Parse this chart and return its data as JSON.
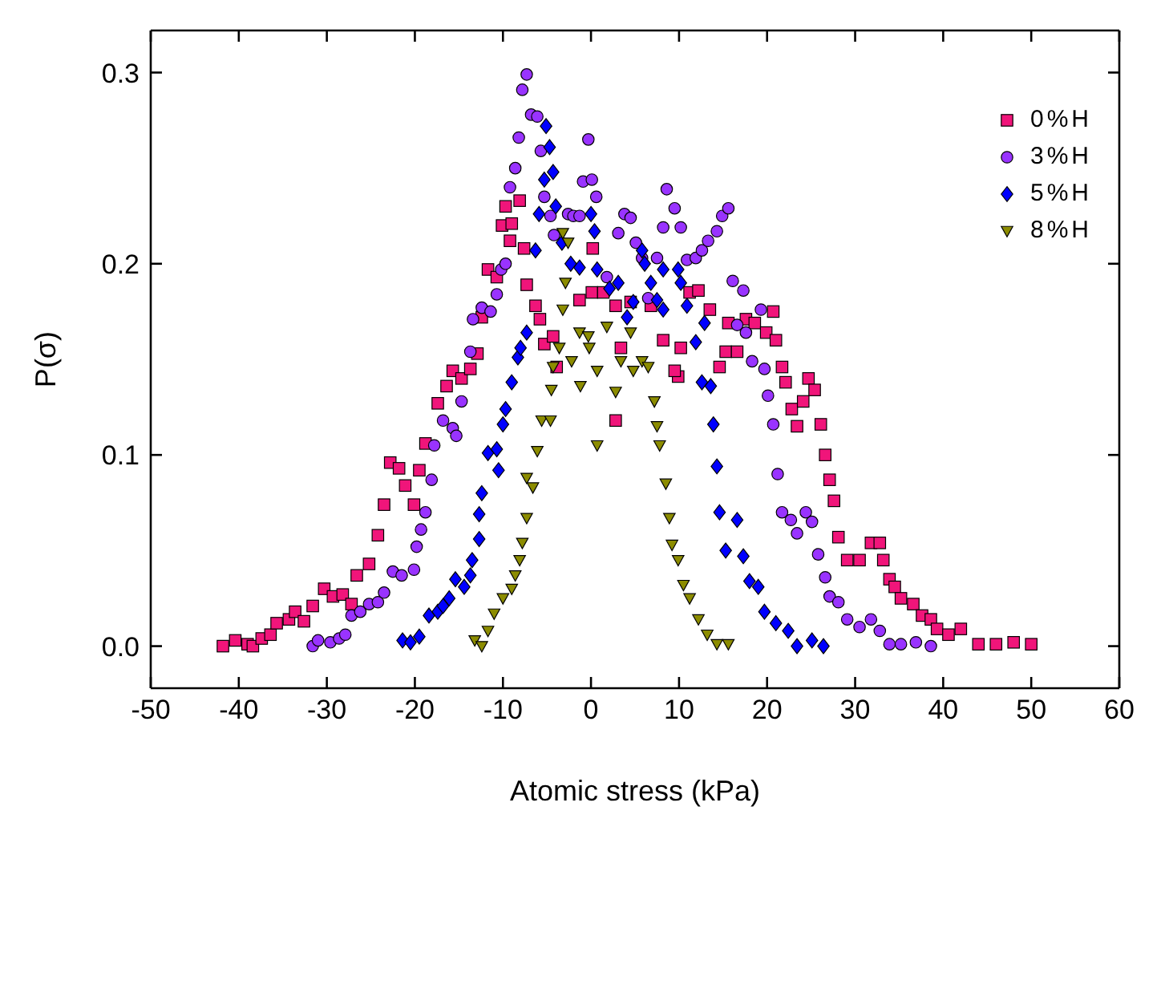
{
  "chart_data": {
    "type": "scatter",
    "xlabel": "Atomic stress (kPa)",
    "ylabel": "P(σ)",
    "xlim": [
      -50,
      60
    ],
    "xticks": [
      -50,
      -40,
      -30,
      -20,
      -10,
      0,
      10,
      20,
      30,
      40,
      50,
      60
    ],
    "ylim": [
      -0.022,
      0.322
    ],
    "yticks": [
      {
        "value": 0,
        "label": "0.0"
      },
      0.1,
      0.2,
      0.3
    ],
    "legend": "top right",
    "series": [
      {
        "name": "0%H",
        "color": "#f0157a",
        "marker": "square",
        "x": [
          -41.8,
          -40.4,
          -39,
          -38.4,
          -37.4,
          -36.4,
          -35.7,
          -34.3,
          -33.6,
          -32.6,
          -31.6,
          -30.3,
          -29.3,
          -28.2,
          -27.2,
          -26.6,
          -25.2,
          -24.2,
          -23.5,
          -22.8,
          -21.8,
          -21.1,
          -20.1,
          -19.5,
          -18.8,
          -17.4,
          -16.4,
          -15.7,
          -14.7,
          -13.7,
          -12.9,
          -12.4,
          -11.7,
          -10.7,
          -10.1,
          -9.2,
          -9,
          -9.7,
          -8.1,
          -7.6,
          -7.3,
          -6.3,
          -5.8,
          -5.3,
          -4.3,
          -3.9,
          0.2,
          -1.3,
          0.1,
          1.4,
          2.8,
          4.5,
          2.8,
          3.4,
          6.8,
          8.2,
          9.9,
          9.5,
          10.2,
          11.2,
          12.2,
          13.5,
          14.6,
          15.3,
          15.6,
          16.6,
          17.6,
          18.6,
          19.9,
          20.7,
          21,
          21.7,
          22.1,
          22.8,
          23.4,
          24.1,
          24.7,
          25.4,
          26.1,
          26.6,
          27.1,
          27.6,
          28.1,
          29.1,
          30.5,
          31.8,
          32.8,
          33.2,
          33.9,
          34.5,
          35.2,
          36.6,
          37.6,
          38.6,
          39.3,
          40.6,
          42,
          44,
          46,
          48,
          50
        ],
        "values": [
          0,
          0.003,
          0.001,
          0,
          0.004,
          0.006,
          0.012,
          0.014,
          0.018,
          0.013,
          0.021,
          0.03,
          0.026,
          0.027,
          0.022,
          0.037,
          0.043,
          0.058,
          0.074,
          0.096,
          0.093,
          0.084,
          0.074,
          0.092,
          0.106,
          0.127,
          0.136,
          0.144,
          0.14,
          0.145,
          0.153,
          0.172,
          0.197,
          0.193,
          0.22,
          0.212,
          0.221,
          0.23,
          0.233,
          0.208,
          0.189,
          0.178,
          0.171,
          0.158,
          0.162,
          0.146,
          0.208,
          0.181,
          0.185,
          0.185,
          0.178,
          0.18,
          0.118,
          0.156,
          0.178,
          0.16,
          0.141,
          0.144,
          0.156,
          0.185,
          0.186,
          0.176,
          0.146,
          0.154,
          0.169,
          0.154,
          0.171,
          0.169,
          0.164,
          0.175,
          0.16,
          0.146,
          0.138,
          0.124,
          0.115,
          0.128,
          0.14,
          0.134,
          0.116,
          0.1,
          0.087,
          0.076,
          0.057,
          0.045,
          0.045,
          0.054,
          0.054,
          0.045,
          0.035,
          0.031,
          0.025,
          0.022,
          0.016,
          0.014,
          0.009,
          0.006,
          0.009,
          0.001,
          0.001,
          0.002,
          0.001
        ]
      },
      {
        "name": "3%H",
        "color": "#9933ff",
        "marker": "circle",
        "x": [
          -31.6,
          -31,
          -29.6,
          -28.6,
          -27.9,
          -27.2,
          -26.2,
          -25.2,
          -24.2,
          -23.5,
          -22.5,
          -21.5,
          -20.1,
          -19.8,
          -19.3,
          -18.8,
          -18.1,
          -17.8,
          -16.8,
          -15.7,
          -15.3,
          -14.7,
          -13.7,
          -13.4,
          -12.4,
          -11.4,
          -10.7,
          -10.2,
          -9.7,
          -9.2,
          -8.6,
          -8.2,
          -7.8,
          -7.3,
          -6.8,
          -6.1,
          -5.7,
          -5.3,
          -4.6,
          -4.2,
          -2.6,
          -2,
          -1.3,
          -0.9,
          -0.3,
          0.1,
          0.6,
          1.8,
          3.1,
          3.8,
          4.5,
          5.1,
          5.8,
          6.5,
          7.5,
          8.2,
          8.6,
          9.5,
          10.2,
          10.9,
          11.9,
          12.6,
          13.3,
          14.3,
          14.9,
          15.6,
          16.1,
          17.3,
          16.6,
          17.6,
          18.3,
          19.3,
          19.7,
          20.1,
          20.7,
          21.2,
          21.7,
          22.7,
          23.4,
          24.4,
          25.1,
          25.8,
          26.6,
          27.1,
          28.1,
          29.1,
          30.5,
          31.8,
          32.8,
          33.9,
          35.2,
          36.9,
          38.6
        ],
        "values": [
          0,
          0.003,
          0.002,
          0.004,
          0.006,
          0.016,
          0.018,
          0.022,
          0.023,
          0.028,
          0.039,
          0.037,
          0.04,
          0.052,
          0.061,
          0.07,
          0.087,
          0.105,
          0.118,
          0.114,
          0.11,
          0.128,
          0.154,
          0.171,
          0.177,
          0.175,
          0.184,
          0.197,
          0.2,
          0.24,
          0.25,
          0.266,
          0.291,
          0.299,
          0.278,
          0.277,
          0.259,
          0.235,
          0.225,
          0.215,
          0.226,
          0.225,
          0.225,
          0.243,
          0.265,
          0.244,
          0.235,
          0.193,
          0.216,
          0.226,
          0.224,
          0.211,
          0.203,
          0.182,
          0.203,
          0.219,
          0.239,
          0.229,
          0.219,
          0.202,
          0.203,
          0.207,
          0.212,
          0.217,
          0.225,
          0.229,
          0.191,
          0.186,
          0.168,
          0.164,
          0.149,
          0.176,
          0.145,
          0.131,
          0.116,
          0.09,
          0.07,
          0.066,
          0.059,
          0.07,
          0.065,
          0.048,
          0.036,
          0.026,
          0.023,
          0.014,
          0.01,
          0.014,
          0.008,
          0.001,
          0.001,
          0.002,
          0
        ]
      },
      {
        "name": "5%H",
        "color": "#0000ff",
        "marker": "diamond",
        "x": [
          -21.4,
          -20.5,
          -19.5,
          -18.4,
          -17.4,
          -16.8,
          -16.1,
          -15.4,
          -14.4,
          -13.7,
          -13.5,
          -12.7,
          -12.7,
          -12.4,
          -10.5,
          -11.7,
          -10.7,
          -10,
          -9.7,
          -9,
          -8.3,
          -8,
          -7.3,
          -6.3,
          -5.9,
          -5.3,
          -4.7,
          -5.1,
          -4.3,
          -4,
          -3.3,
          -2.3,
          -1.3,
          0,
          0.4,
          0.7,
          2.1,
          3.1,
          4.1,
          4.8,
          5.8,
          6.1,
          6.8,
          7.5,
          8.2,
          8.2,
          9.9,
          10.2,
          10.9,
          11.9,
          12.9,
          12.6,
          13.6,
          13.9,
          14.3,
          14.6,
          16.6,
          15.3,
          17.3,
          18,
          19,
          19.7,
          21,
          22.4,
          23.4,
          25.1,
          26.4
        ],
        "values": [
          0.003,
          0.002,
          0.005,
          0.016,
          0.018,
          0.021,
          0.025,
          0.035,
          0.031,
          0.037,
          0.045,
          0.056,
          0.069,
          0.08,
          0.092,
          0.101,
          0.103,
          0.116,
          0.124,
          0.138,
          0.151,
          0.156,
          0.164,
          0.207,
          0.226,
          0.244,
          0.261,
          0.272,
          0.248,
          0.23,
          0.211,
          0.2,
          0.198,
          0.226,
          0.217,
          0.197,
          0.187,
          0.19,
          0.172,
          0.18,
          0.207,
          0.2,
          0.19,
          0.181,
          0.176,
          0.197,
          0.197,
          0.19,
          0.178,
          0.159,
          0.169,
          0.138,
          0.136,
          0.116,
          0.094,
          0.07,
          0.066,
          0.05,
          0.047,
          0.034,
          0.031,
          0.018,
          0.012,
          0.008,
          0,
          0.003,
          0
        ]
      },
      {
        "name": "8%H",
        "color": "#8c8c00",
        "marker": "triangle",
        "x": [
          -13.2,
          -12.4,
          -11.7,
          -11,
          -10,
          -9,
          -8.6,
          -8.1,
          -7.8,
          -7.3,
          -7.3,
          -6.6,
          -6.1,
          -5.6,
          -4.6,
          -4.5,
          -4.3,
          -3.6,
          -3.2,
          -2.9,
          -3.2,
          -2.2,
          -1.2,
          -0.2,
          -2.6,
          -1.3,
          -0.3,
          0.7,
          0.7,
          1.8,
          2.8,
          3.4,
          4.5,
          4.8,
          5.8,
          6.5,
          7.2,
          7.5,
          7.8,
          8.5,
          8.9,
          9.2,
          9.9,
          10.5,
          11.2,
          12.2,
          13.2,
          14.3,
          15.6
        ],
        "values": [
          0.003,
          0,
          0.008,
          0.017,
          0.025,
          0.03,
          0.037,
          0.045,
          0.054,
          0.067,
          0.088,
          0.083,
          0.102,
          0.118,
          0.118,
          0.134,
          0.146,
          0.156,
          0.176,
          0.19,
          0.216,
          0.149,
          0.136,
          0.156,
          0.211,
          0.164,
          0.162,
          0.144,
          0.105,
          0.167,
          0.133,
          0.149,
          0.164,
          0.144,
          0.149,
          0.146,
          0.128,
          0.115,
          0.105,
          0.085,
          0.067,
          0.053,
          0.045,
          0.032,
          0.025,
          0.014,
          0.006,
          0.001,
          0.001
        ]
      }
    ]
  }
}
